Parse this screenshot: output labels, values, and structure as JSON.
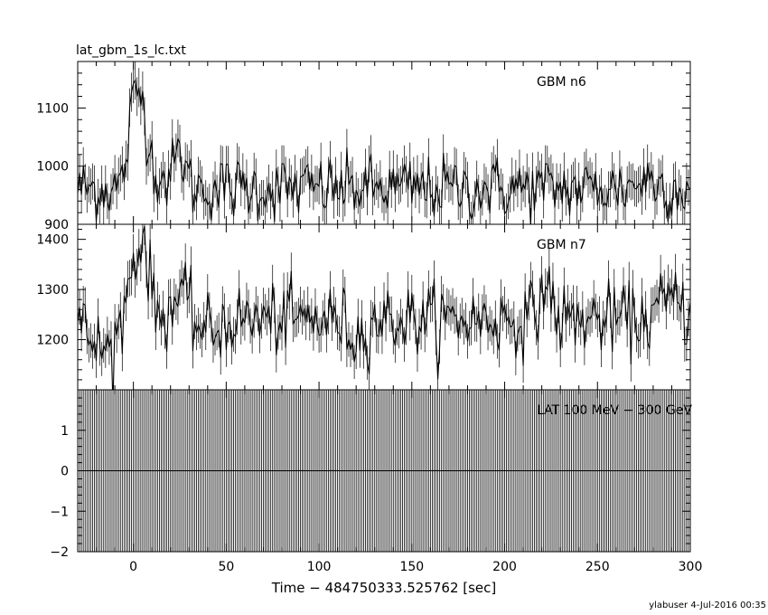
{
  "figure": {
    "title": "lat_gbm_1s_lc.txt",
    "xlabel": "Time − 484750333.525762 [sec]",
    "footer": "ylabuser  4-Jul-2016 00:35"
  },
  "chart_data": [
    {
      "type": "line",
      "title": "",
      "series": [
        {
          "name": "GBM n6",
          "x_range": [
            -30,
            300
          ],
          "x_step": 1,
          "y_mean": 962,
          "y_noise": 28,
          "y_min": 885,
          "y_max": 1180,
          "peaks": [
            {
              "x": 0,
              "amplitude": 120,
              "width": 3
            },
            {
              "x": 5,
              "amplitude": 110,
              "width": 3
            },
            {
              "x": 25,
              "amplitude": 60,
              "width": 3
            },
            {
              "x": 12,
              "amplitude": 25,
              "width": 5
            },
            {
              "x": 277,
              "amplitude": 15,
              "width": 6
            }
          ]
        }
      ],
      "xlim": [
        -30,
        300
      ],
      "ylim": [
        900,
        1180
      ],
      "yticks": [
        900,
        1000,
        1100
      ],
      "xticks": [
        0,
        50,
        100,
        150,
        200,
        250,
        300
      ],
      "legend": "top-right",
      "grid": false
    },
    {
      "type": "line",
      "title": "",
      "series": [
        {
          "name": "GBM n7",
          "x_range": [
            -30,
            300
          ],
          "x_step": 1,
          "y_mean": 1240,
          "y_noise": 35,
          "y_min": 1090,
          "y_max": 1420,
          "peaks": [
            {
              "x": 0,
              "amplitude": 110,
              "width": 4
            },
            {
              "x": 6,
              "amplitude": 120,
              "width": 3
            },
            {
              "x": 25,
              "amplitude": 45,
              "width": 5
            },
            {
              "x": 222,
              "amplitude": 70,
              "width": 3
            },
            {
              "x": 290,
              "amplitude": 40,
              "width": 6
            }
          ],
          "dips": [
            {
              "x": -15,
              "amplitude": 60,
              "width": 8
            },
            {
              "x": 40,
              "amplitude": 25,
              "width": 6
            },
            {
              "x": 120,
              "amplitude": 35,
              "width": 4
            }
          ]
        }
      ],
      "xlim": [
        -30,
        300
      ],
      "ylim": [
        1100,
        1430
      ],
      "yticks": [
        1200,
        1300,
        1400
      ],
      "xticks": [
        0,
        50,
        100,
        150,
        200,
        250,
        300
      ],
      "legend": "top-right",
      "grid": false
    },
    {
      "type": "line",
      "title": "",
      "series": [
        {
          "name": "LAT 100 MeV − 300 GeV",
          "x_range": [
            -30,
            300
          ],
          "x_step": 1,
          "values": "all zero",
          "error_band": [
            -2,
            2
          ]
        }
      ],
      "xlim": [
        -30,
        300
      ],
      "ylim": [
        -2,
        2
      ],
      "yticks": [
        -2,
        -1,
        0,
        1
      ],
      "xticks": [
        0,
        50,
        100,
        150,
        200,
        250,
        300
      ],
      "xticklabels": [
        "0",
        "50",
        "100",
        "150",
        "200",
        "250",
        "300"
      ],
      "legend": "top-right",
      "grid": false
    }
  ]
}
